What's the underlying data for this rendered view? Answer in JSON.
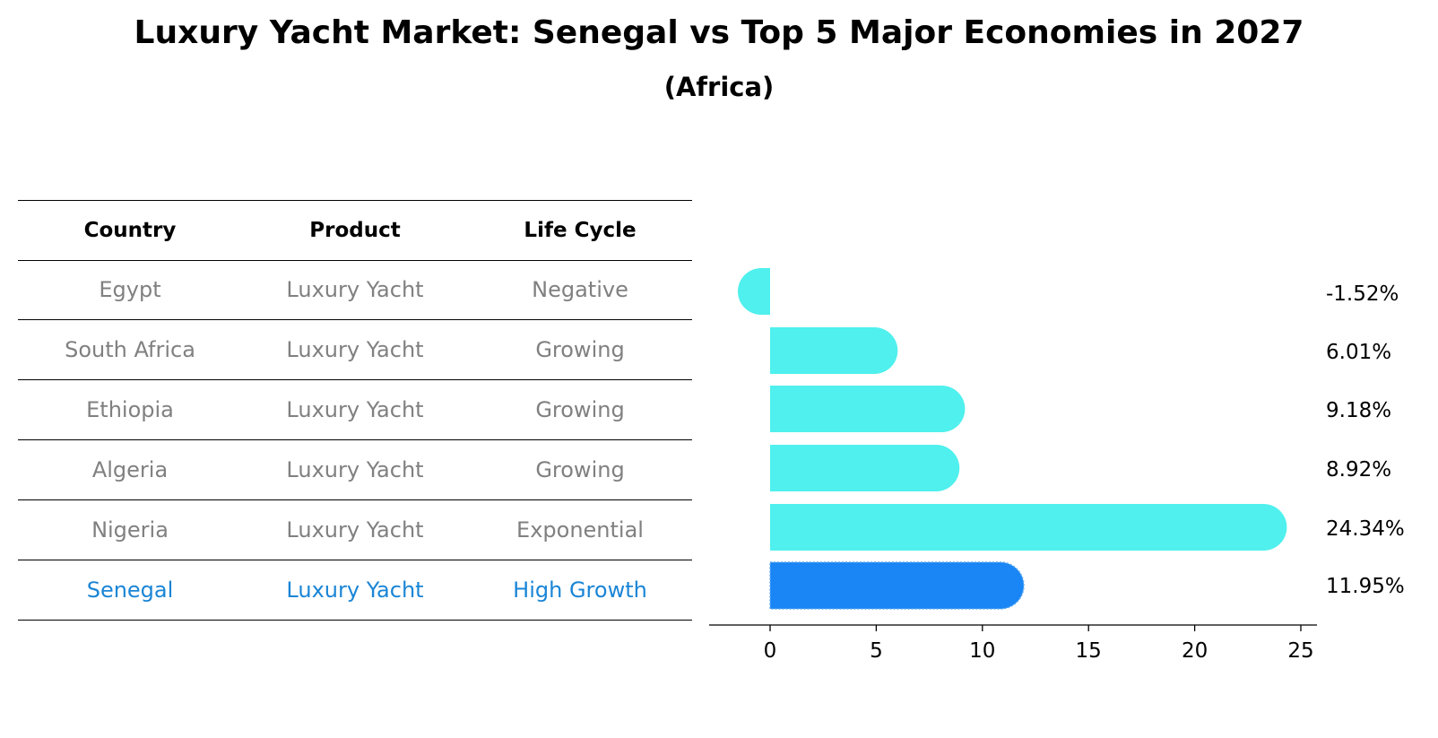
{
  "title": "Luxury Yacht Market: Senegal vs Top 5 Major Economies in 2027",
  "subtitle": "(Africa)",
  "table": {
    "headers": [
      "Country",
      "Product",
      "Life Cycle"
    ],
    "rows": [
      {
        "country": "Egypt",
        "product": "Luxury Yacht",
        "life_cycle": "Negative"
      },
      {
        "country": "South Africa",
        "product": "Luxury Yacht",
        "life_cycle": "Growing"
      },
      {
        "country": "Ethiopia",
        "product": "Luxury Yacht",
        "life_cycle": "Growing"
      },
      {
        "country": "Algeria",
        "product": "Luxury Yacht",
        "life_cycle": "Growing"
      },
      {
        "country": "Nigeria",
        "product": "Luxury Yacht",
        "life_cycle": "Exponential"
      },
      {
        "country": "Senegal",
        "product": "Luxury Yacht",
        "life_cycle": "High Growth"
      }
    ],
    "highlight_color": "#1a85d6",
    "text_color": "#808080"
  },
  "chart_data": {
    "type": "bar",
    "orientation": "horizontal",
    "categories": [
      "Egypt",
      "South Africa",
      "Ethiopia",
      "Algeria",
      "Nigeria",
      "Senegal"
    ],
    "values": [
      -1.52,
      6.01,
      9.18,
      8.92,
      24.34,
      11.95
    ],
    "value_labels": [
      "-1.52%",
      "6.01%",
      "9.18%",
      "8.92%",
      "24.34%",
      "11.95%"
    ],
    "xticks": [
      "0",
      "5",
      "10",
      "15",
      "20",
      "25"
    ],
    "xlim": [
      -2.8,
      25.7
    ],
    "grid": false,
    "bar_color": "#4ff0ed",
    "highlight_color": "#1a85f5",
    "highlight_category": "Senegal"
  }
}
